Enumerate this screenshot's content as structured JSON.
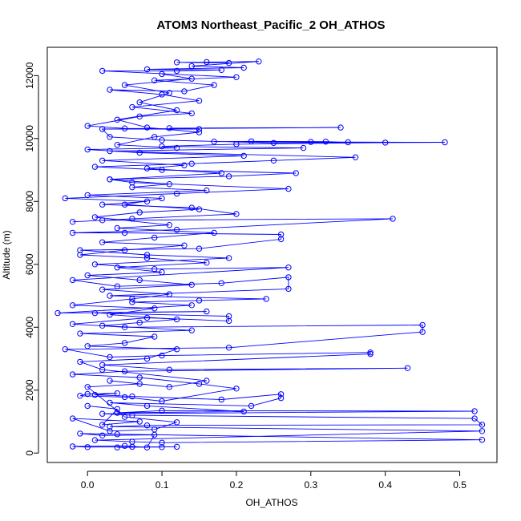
{
  "chart_data": {
    "type": "scatter",
    "title": "ATOM3 Northeast_Pacific_2 OH_ATHOS",
    "xlabel": "OH_ATHOS",
    "ylabel": "Altitude (m)",
    "xlim": [
      -0.054,
      0.55
    ],
    "ylim": [
      -300,
      12900
    ],
    "xticks": [
      0.0,
      0.1,
      0.2,
      0.3,
      0.4,
      0.5
    ],
    "xtick_labels": [
      "0.0",
      "0.1",
      "0.2",
      "0.3",
      "0.4",
      "0.5"
    ],
    "yticks": [
      0,
      2000,
      4000,
      6000,
      8000,
      10000,
      12000
    ],
    "ytick_labels": [
      "0",
      "2000",
      "4000",
      "6000",
      "8000",
      "10000",
      "12000"
    ],
    "grid": false,
    "color": "#0000ff",
    "marker": "open-circle",
    "connected": true,
    "series": [
      {
        "points": [
          [
            0.1,
            190
          ],
          [
            0.06,
            200
          ],
          [
            0.04,
            180
          ],
          [
            0.12,
            200
          ],
          [
            0.0,
            190
          ],
          [
            -0.02,
            210
          ],
          [
            0.05,
            230
          ],
          [
            0.08,
            180
          ],
          [
            0.09,
            580
          ],
          [
            0.02,
            560
          ],
          [
            -0.01,
            620
          ],
          [
            0.04,
            600
          ],
          [
            0.53,
            420
          ],
          [
            0.1,
            330
          ],
          [
            0.06,
            360
          ],
          [
            0.01,
            410
          ],
          [
            0.53,
            700
          ],
          [
            0.03,
            840
          ],
          [
            0.08,
            880
          ],
          [
            0.53,
            900
          ],
          [
            0.52,
            1100
          ],
          [
            0.06,
            1200
          ],
          [
            0.02,
            1250
          ],
          [
            0.52,
            1330
          ],
          [
            0.1,
            1350
          ],
          [
            0.04,
            1280
          ],
          [
            0.21,
            1320
          ],
          [
            0.08,
            1500
          ],
          [
            0.03,
            1600
          ],
          [
            0.22,
            1500
          ],
          [
            0.26,
            1750
          ],
          [
            0.26,
            1870
          ],
          [
            0.18,
            1700
          ],
          [
            0.06,
            1800
          ],
          [
            0.01,
            1850
          ],
          [
            0.04,
            1900
          ],
          [
            0.0,
            1880
          ],
          [
            -0.01,
            1820
          ],
          [
            0.05,
            1780
          ],
          [
            0.1,
            1650
          ],
          [
            0.2,
            2050
          ],
          [
            0.15,
            2200
          ],
          [
            0.07,
            2400
          ],
          [
            -0.02,
            2500
          ],
          [
            0.05,
            2600
          ],
          [
            0.43,
            2700
          ],
          [
            0.11,
            2650
          ],
          [
            0.02,
            2800
          ],
          [
            0.38,
            3150
          ],
          [
            0.38,
            3200
          ],
          [
            0.1,
            3100
          ],
          [
            0.03,
            3050
          ],
          [
            -0.03,
            3300
          ],
          [
            0.19,
            3350
          ],
          [
            0.45,
            3850
          ],
          [
            0.45,
            4070
          ],
          [
            0.05,
            4000
          ],
          [
            -0.02,
            4100
          ],
          [
            0.08,
            4300
          ],
          [
            0.19,
            4200
          ],
          [
            0.19,
            4350
          ],
          [
            0.01,
            4450
          ],
          [
            0.16,
            4500
          ],
          [
            -0.04,
            4450
          ],
          [
            0.14,
            4700
          ],
          [
            0.06,
            4800
          ],
          [
            0.15,
            4850
          ],
          [
            0.24,
            4900
          ],
          [
            0.03,
            5000
          ],
          [
            0.27,
            5220
          ],
          [
            0.27,
            5590
          ],
          [
            0.18,
            5400
          ],
          [
            0.04,
            5300
          ],
          [
            -0.02,
            5500
          ],
          [
            0.27,
            5900
          ],
          [
            0.09,
            5850
          ],
          [
            0.01,
            6000
          ],
          [
            0.19,
            6200
          ],
          [
            0.08,
            6300
          ],
          [
            -0.01,
            6450
          ],
          [
            0.15,
            6500
          ],
          [
            0.26,
            6800
          ],
          [
            0.26,
            6950
          ],
          [
            0.05,
            7000
          ],
          [
            -0.02,
            7000
          ],
          [
            0.12,
            7100
          ],
          [
            0.41,
            7450
          ],
          [
            0.02,
            7400
          ],
          [
            -0.02,
            7350
          ],
          [
            0.06,
            7450
          ],
          [
            0.2,
            7600
          ],
          [
            0.14,
            7800
          ],
          [
            0.02,
            7900
          ],
          [
            0.08,
            8000
          ],
          [
            -0.03,
            8100
          ],
          [
            0.12,
            8250
          ],
          [
            0.27,
            8400
          ],
          [
            0.06,
            8600
          ],
          [
            0.03,
            8700
          ],
          [
            0.19,
            8800
          ],
          [
            0.28,
            8900
          ],
          [
            0.1,
            9000
          ],
          [
            0.01,
            9100
          ],
          [
            0.14,
            9200
          ],
          [
            0.25,
            9300
          ],
          [
            0.36,
            9400
          ],
          [
            0.03,
            9600
          ],
          [
            0.29,
            9700
          ],
          [
            0.1,
            9750
          ],
          [
            0.2,
            9820
          ],
          [
            0.4,
            9870
          ],
          [
            0.48,
            9880
          ],
          [
            0.3,
            9890
          ],
          [
            0.17,
            9900
          ],
          [
            0.22,
            9910
          ],
          [
            0.32,
            9900
          ],
          [
            0.35,
            9880
          ],
          [
            0.25,
            9860
          ],
          [
            0.1,
            9950
          ],
          [
            0.03,
            10050
          ],
          [
            0.02,
            10300
          ],
          [
            0.34,
            10350
          ],
          [
            0.11,
            10330
          ],
          [
            0.15,
            10300
          ],
          [
            0.05,
            10320
          ],
          [
            0.0,
            10400
          ],
          [
            0.07,
            10700
          ],
          [
            0.14,
            10800
          ],
          [
            0.06,
            11000
          ],
          [
            0.15,
            11200
          ],
          [
            0.1,
            11400
          ],
          [
            0.03,
            11550
          ],
          [
            0.13,
            11500
          ],
          [
            0.17,
            11700
          ],
          [
            0.09,
            11850
          ],
          [
            0.2,
            11950
          ],
          [
            0.02,
            12150
          ],
          [
            0.12,
            12150
          ],
          [
            0.18,
            12180
          ],
          [
            0.08,
            12200
          ],
          [
            0.21,
            12250
          ],
          [
            0.14,
            12300
          ],
          [
            0.23,
            12450
          ],
          [
            0.16,
            12430
          ],
          [
            0.12,
            12420
          ],
          [
            0.19,
            12400
          ]
        ]
      },
      {
        "points": [
          [
            0.0,
            1500
          ],
          [
            0.04,
            1400
          ],
          [
            0.02,
            900
          ],
          [
            0.07,
            1000
          ],
          [
            -0.02,
            1100
          ],
          [
            0.03,
            700
          ],
          [
            0.09,
            750
          ],
          [
            0.12,
            980
          ],
          [
            0.05,
            1150
          ],
          [
            0.0,
            2100
          ],
          [
            0.07,
            2200
          ],
          [
            0.03,
            2300
          ],
          [
            0.11,
            2100
          ],
          [
            0.16,
            2300
          ],
          [
            0.02,
            2650
          ],
          [
            -0.01,
            2900
          ],
          [
            0.08,
            3000
          ],
          [
            0.12,
            3300
          ],
          [
            0.0,
            3400
          ],
          [
            0.05,
            3500
          ],
          [
            0.09,
            3700
          ],
          [
            -0.01,
            3800
          ],
          [
            0.14,
            3900
          ],
          [
            0.02,
            4050
          ],
          [
            0.07,
            4150
          ],
          [
            0.12,
            4250
          ],
          [
            0.03,
            4400
          ],
          [
            0.09,
            4600
          ],
          [
            -0.02,
            4700
          ],
          [
            0.06,
            4900
          ],
          [
            0.11,
            5050
          ],
          [
            0.02,
            5200
          ],
          [
            0.14,
            5350
          ],
          [
            0.07,
            5500
          ],
          [
            0.0,
            5650
          ],
          [
            0.1,
            5750
          ],
          [
            0.04,
            5900
          ],
          [
            0.16,
            6050
          ],
          [
            0.08,
            6200
          ],
          [
            -0.01,
            6300
          ],
          [
            0.05,
            6450
          ],
          [
            0.13,
            6600
          ],
          [
            0.02,
            6700
          ],
          [
            0.09,
            6850
          ],
          [
            0.17,
            7000
          ],
          [
            0.04,
            7150
          ],
          [
            0.11,
            7250
          ],
          [
            0.01,
            7500
          ],
          [
            0.07,
            7650
          ],
          [
            0.15,
            7750
          ],
          [
            0.05,
            7900
          ],
          [
            0.1,
            8100
          ],
          [
            0.0,
            8200
          ],
          [
            0.16,
            8350
          ],
          [
            0.06,
            8450
          ],
          [
            0.11,
            8550
          ],
          [
            0.03,
            8700
          ],
          [
            0.18,
            8900
          ],
          [
            0.08,
            9050
          ],
          [
            0.13,
            9150
          ],
          [
            0.02,
            9300
          ],
          [
            0.21,
            9450
          ],
          [
            0.07,
            9550
          ],
          [
            0.0,
            9650
          ],
          [
            0.12,
            9700
          ],
          [
            0.04,
            9800
          ],
          [
            0.09,
            10050
          ],
          [
            0.15,
            10200
          ],
          [
            0.08,
            10350
          ],
          [
            0.04,
            10600
          ],
          [
            0.12,
            10900
          ],
          [
            0.07,
            11150
          ],
          [
            0.11,
            11450
          ],
          [
            0.05,
            11700
          ],
          [
            0.14,
            11900
          ],
          [
            0.1,
            12050
          ]
        ]
      }
    ]
  }
}
